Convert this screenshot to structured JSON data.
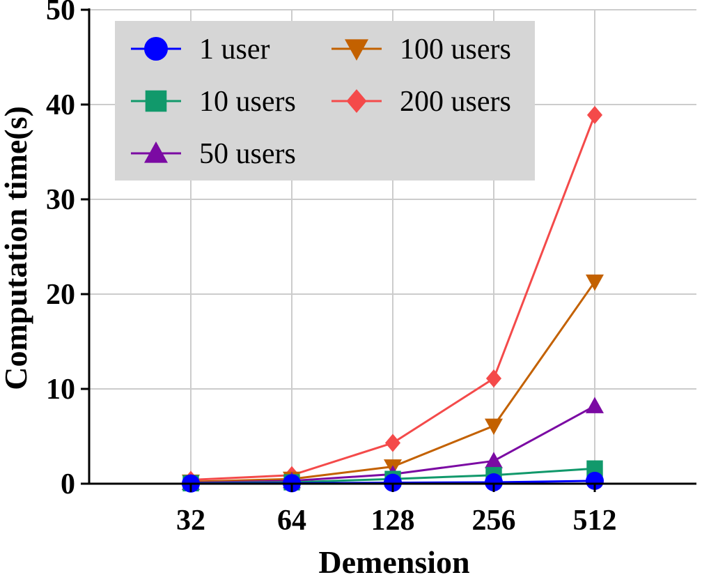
{
  "chart_data": {
    "type": "line",
    "xlabel": "Demension",
    "ylabel": "Computation time(s)",
    "categories": [
      "32",
      "64",
      "128",
      "256",
      "512"
    ],
    "ylim": [
      0,
      50
    ],
    "yticks": [
      "0",
      "10",
      "20",
      "30",
      "40",
      "50"
    ],
    "grid": true,
    "legend_position": "top-left",
    "series": [
      {
        "name": "1 user",
        "color": "#0000ff",
        "marker": "circle",
        "values": [
          0.02,
          0.05,
          0.1,
          0.15,
          0.3
        ]
      },
      {
        "name": "10 users",
        "color": "#11996b",
        "marker": "square",
        "values": [
          0.05,
          0.15,
          0.5,
          0.9,
          1.6
        ]
      },
      {
        "name": "50 users",
        "color": "#7b0aa3",
        "marker": "triangle-up",
        "values": [
          0.1,
          0.3,
          1.0,
          2.4,
          8.2
        ]
      },
      {
        "name": "100 users",
        "color": "#c36100",
        "marker": "triangle-down",
        "values": [
          0.2,
          0.5,
          1.8,
          6.1,
          21.3
        ]
      },
      {
        "name": "200 users",
        "color": "#f44a4a",
        "marker": "diamond",
        "values": [
          0.4,
          0.9,
          4.3,
          11.1,
          38.9
        ]
      }
    ]
  }
}
